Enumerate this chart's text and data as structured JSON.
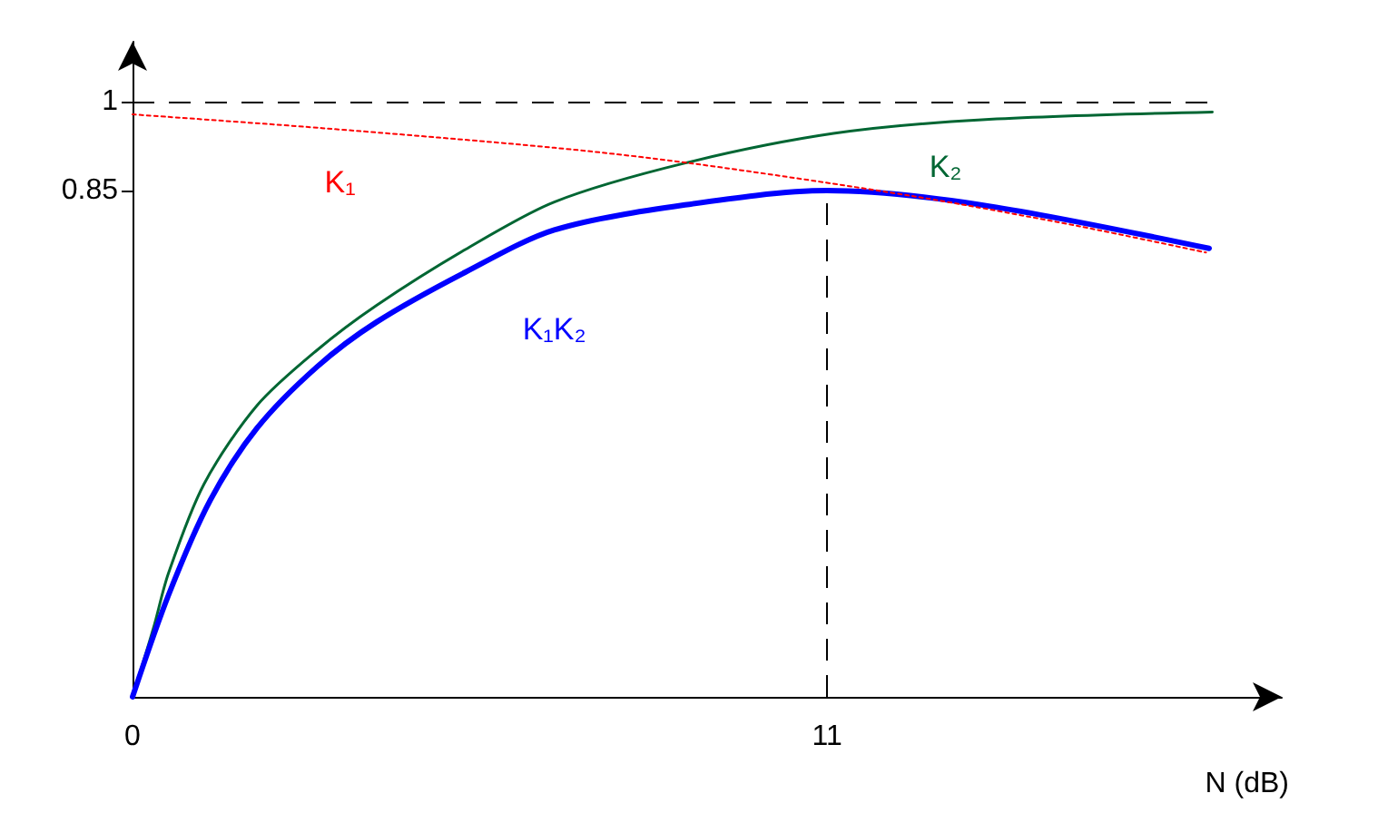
{
  "chart_data": {
    "type": "line",
    "xlabel": "N (dB)",
    "xlim": [
      0,
      18.2
    ],
    "ylim": [
      0,
      1.1
    ],
    "xticks": [
      0,
      11
    ],
    "yticks": [
      0.85,
      1
    ],
    "grid": false,
    "legend": false,
    "marker": "none",
    "series": [
      {
        "name": "K₁",
        "color": "#ff0000",
        "line_style": "dotted",
        "x": [
          0,
          3,
          6.68,
          8.84,
          12.4,
          15,
          17
        ],
        "values": [
          0.978,
          0.955,
          0.922,
          0.896,
          0.84,
          0.79,
          0.746
        ]
      },
      {
        "name": "K₂",
        "color": "#006633",
        "line_style": "solid",
        "x": [
          0,
          0.33,
          0.57,
          1.13,
          1.97,
          2.92,
          3.86,
          5.27,
          6.68,
          8.74,
          11.1,
          13.45,
          17.1
        ],
        "values": [
          0,
          0.115,
          0.208,
          0.357,
          0.489,
          0.582,
          0.657,
          0.751,
          0.831,
          0.896,
          0.946,
          0.969,
          0.982
        ]
      },
      {
        "name": "K₁K₂",
        "color": "#0000ff",
        "line_style": "solid",
        "x": [
          0,
          0.57,
          1.23,
          1.97,
          2.92,
          3.86,
          5.27,
          6.68,
          8.75,
          11,
          13.45,
          17.05
        ],
        "values": [
          0,
          0.171,
          0.33,
          0.451,
          0.554,
          0.629,
          0.713,
          0.784,
          0.826,
          0.85,
          0.826,
          0.753
        ]
      }
    ],
    "ref_lines": [
      {
        "axis": "y",
        "value": 1,
        "line_style": "dashed",
        "color": "#000000"
      },
      {
        "axis": "x",
        "value": 11,
        "line_style": "dashed",
        "color": "#000000"
      }
    ]
  }
}
